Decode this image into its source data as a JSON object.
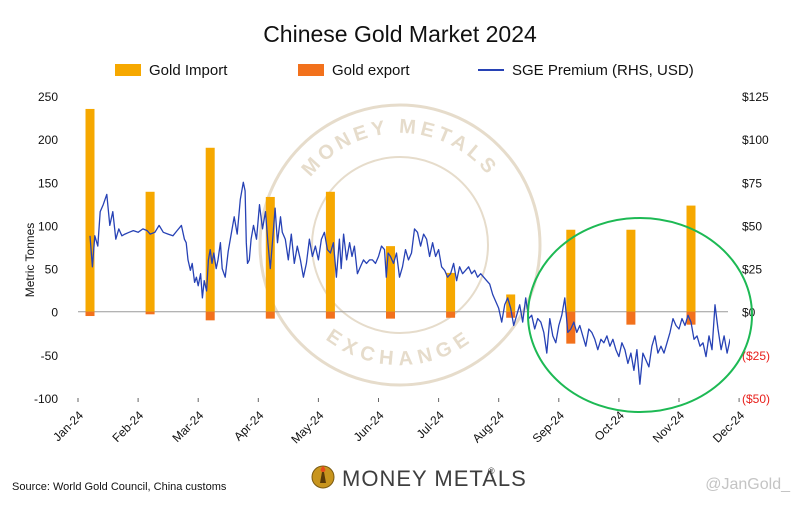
{
  "colors": {
    "import": "#F6A800",
    "export": "#F2711C",
    "premium": "#2742B5",
    "negative_tick": "#E8201C",
    "circle": "#1DB954",
    "axis": "#000000",
    "zero_line": "#9A9A9A",
    "watermark": "#E6DCCB"
  },
  "source_text": "Source: World Gold Council, China customs",
  "logo": {
    "name": "MONEY METALS",
    "mark": "®"
  },
  "watermark": {
    "top_text": "MONEY METALS",
    "bottom_text": "EXCHANGE"
  },
  "handle": "@JanGold_",
  "chart_data": {
    "type": "bar+line",
    "title": "Chinese Gold Market 2024",
    "ylabel": "Metric Tonnes",
    "y_left": {
      "min": -100,
      "max": 250,
      "ticks": [
        250,
        200,
        150,
        100,
        50,
        0,
        -50,
        -100
      ]
    },
    "y_right": {
      "min": -50,
      "max": 125,
      "ticks": [
        {
          "value": 125,
          "label": "$125"
        },
        {
          "value": 100,
          "label": "$100"
        },
        {
          "value": 75,
          "label": "$75"
        },
        {
          "value": 50,
          "label": "$50"
        },
        {
          "value": 25,
          "label": "$25"
        },
        {
          "value": 0,
          "label": "$0"
        },
        {
          "value": -25,
          "label": "($25)"
        },
        {
          "value": -50,
          "label": "($50)"
        }
      ]
    },
    "x_ticks": [
      "Jan-24",
      "Feb-24",
      "Mar-24",
      "Apr-24",
      "May-24",
      "Jun-24",
      "Jul-24",
      "Aug-24",
      "Sep-24",
      "Oct-24",
      "Nov-24",
      "Dec-24"
    ],
    "legend": [
      "Gold Import",
      "Gold export",
      "SGE Premium (RHS, USD)"
    ],
    "legend_position": "top",
    "bars": {
      "months": [
        "Jan-24",
        "Feb-24",
        "Mar-24",
        "Apr-24",
        "May-24",
        "Jun-24",
        "Jul-24",
        "Aug-24",
        "Sep-24",
        "Oct-24",
        "Nov-24",
        "Dec-24"
      ],
      "gold_import": [
        235,
        139,
        190,
        133,
        139,
        76,
        45,
        20,
        95,
        95,
        123,
        null
      ],
      "gold_export": [
        -5,
        -3,
        -10,
        -8,
        -8,
        -8,
        -7,
        -7,
        -37,
        -15,
        -15,
        null
      ]
    },
    "line_series": {
      "name": "SGE Premium (RHS, USD)",
      "axis": "right",
      "points": [
        [
          0.0,
          44
        ],
        [
          0.04,
          26
        ],
        [
          0.08,
          44
        ],
        [
          0.13,
          38
        ],
        [
          0.17,
          58
        ],
        [
          0.22,
          62
        ],
        [
          0.28,
          68
        ],
        [
          0.33,
          50
        ],
        [
          0.38,
          58
        ],
        [
          0.43,
          42
        ],
        [
          0.48,
          48
        ],
        [
          0.53,
          44
        ],
        [
          0.58,
          45
        ],
        [
          0.65,
          46
        ],
        [
          0.72,
          47
        ],
        [
          0.8,
          46
        ],
        [
          0.88,
          48
        ],
        [
          0.95,
          47
        ],
        [
          1.0,
          45
        ],
        [
          1.08,
          46
        ],
        [
          1.15,
          50
        ],
        [
          1.22,
          46
        ],
        [
          1.3,
          45
        ],
        [
          1.38,
          44
        ],
        [
          1.45,
          47
        ],
        [
          1.52,
          50
        ],
        [
          1.57,
          42
        ],
        [
          1.6,
          40
        ],
        [
          1.63,
          30
        ],
        [
          1.67,
          24
        ],
        [
          1.7,
          28
        ],
        [
          1.74,
          17
        ],
        [
          1.77,
          20
        ],
        [
          1.8,
          15
        ],
        [
          1.84,
          22
        ],
        [
          1.87,
          8
        ],
        [
          1.9,
          18
        ],
        [
          1.94,
          12
        ],
        [
          1.97,
          30
        ],
        [
          2.0,
          36
        ],
        [
          2.03,
          28
        ],
        [
          2.06,
          34
        ],
        [
          2.1,
          25
        ],
        [
          2.13,
          30
        ],
        [
          2.17,
          40
        ],
        [
          2.2,
          25
        ],
        [
          2.25,
          20
        ],
        [
          2.3,
          35
        ],
        [
          2.35,
          45
        ],
        [
          2.4,
          55
        ],
        [
          2.45,
          45
        ],
        [
          2.5,
          65
        ],
        [
          2.55,
          75
        ],
        [
          2.58,
          70
        ],
        [
          2.6,
          40
        ],
        [
          2.62,
          28
        ],
        [
          2.65,
          30
        ],
        [
          2.68,
          42
        ],
        [
          2.72,
          50
        ],
        [
          2.77,
          42
        ],
        [
          2.82,
          62
        ],
        [
          2.87,
          48
        ],
        [
          2.92,
          58
        ],
        [
          2.96,
          40
        ],
        [
          3.0,
          25
        ],
        [
          3.04,
          42
        ],
        [
          3.08,
          60
        ],
        [
          3.12,
          40
        ],
        [
          3.17,
          55
        ],
        [
          3.2,
          46
        ],
        [
          3.25,
          42
        ],
        [
          3.3,
          30
        ],
        [
          3.35,
          45
        ],
        [
          3.4,
          28
        ],
        [
          3.45,
          38
        ],
        [
          3.5,
          30
        ],
        [
          3.55,
          20
        ],
        [
          3.6,
          28
        ],
        [
          3.65,
          42
        ],
        [
          3.7,
          32
        ],
        [
          3.75,
          38
        ],
        [
          3.8,
          30
        ],
        [
          3.85,
          42
        ],
        [
          3.9,
          46
        ],
        [
          3.95,
          36
        ],
        [
          4.0,
          34
        ],
        [
          4.05,
          40
        ],
        [
          4.1,
          20
        ],
        [
          4.15,
          42
        ],
        [
          4.18,
          25
        ],
        [
          4.22,
          45
        ],
        [
          4.27,
          30
        ],
        [
          4.32,
          40
        ],
        [
          4.36,
          32
        ],
        [
          4.4,
          38
        ],
        [
          4.45,
          22
        ],
        [
          4.5,
          26
        ],
        [
          4.55,
          30
        ],
        [
          4.6,
          28
        ],
        [
          4.65,
          30
        ],
        [
          4.7,
          30
        ],
        [
          4.75,
          28
        ],
        [
          4.8,
          32
        ],
        [
          4.85,
          38
        ],
        [
          4.9,
          36
        ],
        [
          4.93,
          20
        ],
        [
          4.96,
          34
        ],
        [
          5.0,
          32
        ],
        [
          5.05,
          28
        ],
        [
          5.1,
          34
        ],
        [
          5.15,
          20
        ],
        [
          5.2,
          26
        ],
        [
          5.25,
          36
        ],
        [
          5.3,
          30
        ],
        [
          5.35,
          34
        ],
        [
          5.4,
          48
        ],
        [
          5.45,
          46
        ],
        [
          5.5,
          38
        ],
        [
          5.55,
          45
        ],
        [
          5.6,
          42
        ],
        [
          5.65,
          32
        ],
        [
          5.7,
          40
        ],
        [
          5.75,
          32
        ],
        [
          5.8,
          36
        ],
        [
          5.85,
          26
        ],
        [
          5.9,
          24
        ],
        [
          5.95,
          20
        ],
        [
          6.0,
          22
        ],
        [
          6.05,
          28
        ],
        [
          6.1,
          18
        ],
        [
          6.15,
          26
        ],
        [
          6.2,
          22
        ],
        [
          6.25,
          24
        ],
        [
          6.3,
          26
        ],
        [
          6.35,
          22
        ],
        [
          6.4,
          24
        ],
        [
          6.45,
          20
        ],
        [
          6.5,
          22
        ],
        [
          6.55,
          20
        ],
        [
          6.6,
          18
        ],
        [
          6.65,
          16
        ],
        [
          6.7,
          10
        ],
        [
          6.75,
          6
        ],
        [
          6.8,
          2
        ],
        [
          6.85,
          -6
        ],
        [
          6.9,
          4
        ],
        [
          6.95,
          8
        ],
        [
          7.0,
          2
        ],
        [
          7.05,
          -8
        ],
        [
          7.1,
          -2
        ],
        [
          7.15,
          4
        ],
        [
          7.2,
          -6
        ],
        [
          7.25,
          8
        ],
        [
          7.3,
          -4
        ],
        [
          7.35,
          -2
        ],
        [
          7.4,
          -10
        ],
        [
          7.45,
          -4
        ],
        [
          7.5,
          -6
        ],
        [
          7.55,
          -12
        ],
        [
          7.6,
          -24
        ],
        [
          7.65,
          -4
        ],
        [
          7.7,
          -14
        ],
        [
          7.75,
          -18
        ],
        [
          7.8,
          -8
        ],
        [
          7.85,
          -2
        ],
        [
          7.9,
          8
        ],
        [
          7.95,
          -12
        ],
        [
          8.0,
          -10
        ],
        [
          8.05,
          -6
        ],
        [
          8.1,
          -12
        ],
        [
          8.15,
          -8
        ],
        [
          8.2,
          -14
        ],
        [
          8.25,
          -20
        ],
        [
          8.3,
          -10
        ],
        [
          8.35,
          -12
        ],
        [
          8.4,
          -16
        ],
        [
          8.45,
          -22
        ],
        [
          8.5,
          -16
        ],
        [
          8.55,
          -18
        ],
        [
          8.6,
          -14
        ],
        [
          8.65,
          -20
        ],
        [
          8.7,
          -16
        ],
        [
          8.75,
          -22
        ],
        [
          8.8,
          -26
        ],
        [
          8.85,
          -18
        ],
        [
          8.9,
          -22
        ],
        [
          8.95,
          -30
        ],
        [
          9.0,
          -24
        ],
        [
          9.05,
          -34
        ],
        [
          9.1,
          -22
        ],
        [
          9.15,
          -42
        ],
        [
          9.2,
          -24
        ],
        [
          9.25,
          -28
        ],
        [
          9.3,
          -32
        ],
        [
          9.35,
          -20
        ],
        [
          9.4,
          -14
        ],
        [
          9.45,
          -24
        ],
        [
          9.5,
          -20
        ],
        [
          9.55,
          -24
        ],
        [
          9.6,
          -18
        ],
        [
          9.65,
          -12
        ],
        [
          9.7,
          -4
        ],
        [
          9.75,
          -8
        ],
        [
          9.8,
          -10
        ],
        [
          9.85,
          -4
        ],
        [
          9.9,
          -8
        ],
        [
          9.95,
          -2
        ],
        [
          10.0,
          -6
        ],
        [
          10.05,
          -16
        ],
        [
          10.1,
          -14
        ],
        [
          10.15,
          -20
        ],
        [
          10.2,
          -18
        ],
        [
          10.25,
          -26
        ],
        [
          10.3,
          -14
        ],
        [
          10.35,
          -22
        ],
        [
          10.4,
          4
        ],
        [
          10.45,
          -10
        ],
        [
          10.5,
          -22
        ],
        [
          10.55,
          -14
        ],
        [
          10.6,
          -24
        ],
        [
          10.65,
          -16
        ],
        [
          10.7,
          -26
        ],
        [
          10.75,
          -22
        ],
        [
          10.8,
          -18
        ],
        [
          10.85,
          -30
        ],
        [
          10.9,
          -22
        ],
        [
          10.95,
          -24
        ],
        [
          11.0,
          -20
        ],
        [
          11.05,
          -22
        ],
        [
          11.1,
          -10
        ],
        [
          11.15,
          -14
        ],
        [
          11.2,
          -12
        ],
        [
          11.25,
          -14
        ]
      ]
    }
  }
}
